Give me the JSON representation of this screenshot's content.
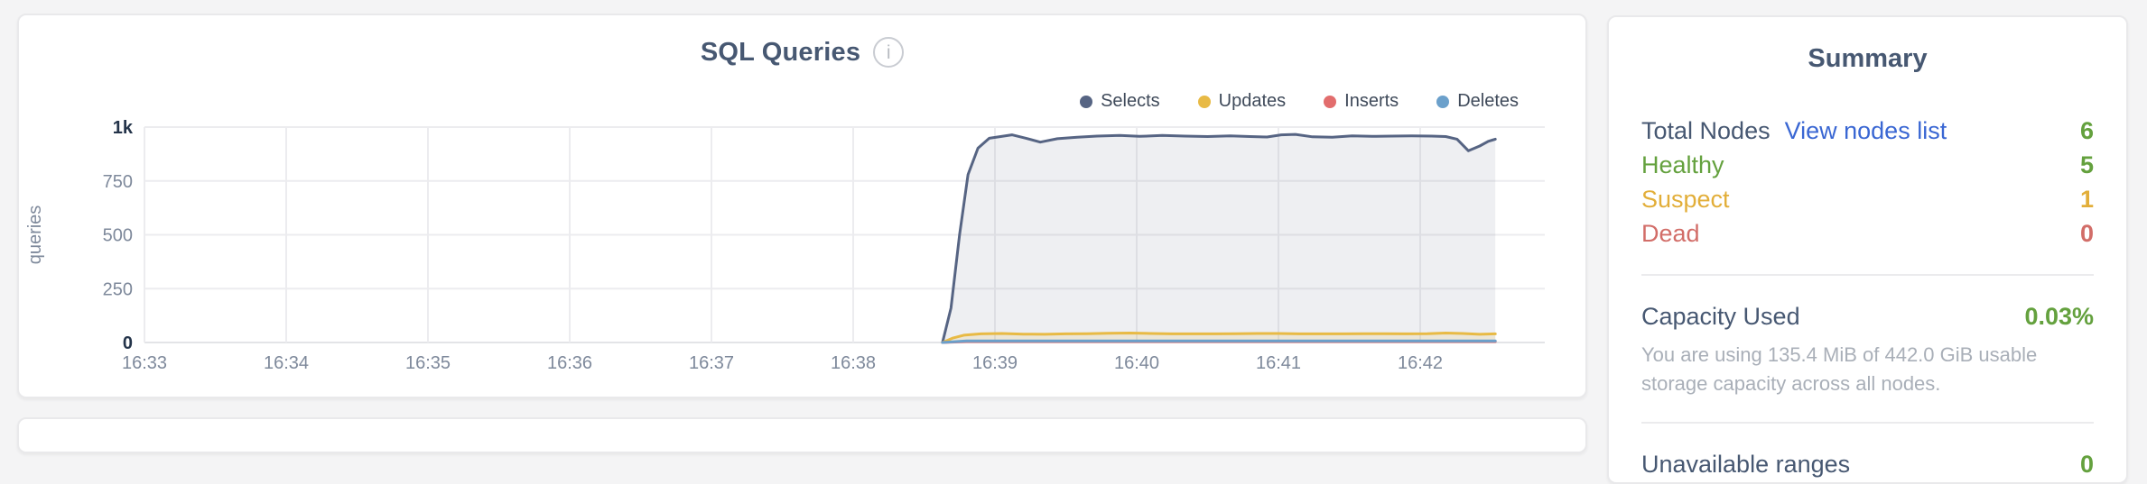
{
  "theme": {
    "page_bg": "#f4f4f5",
    "card_bg": "#ffffff",
    "border": "#e9e9eb",
    "dark": "#475872",
    "green": "#64a13e",
    "amber": "#e2ae39",
    "red": "#d26d68",
    "link": "#3a67d3",
    "caption": "#a9afb8",
    "legend_text": "#3f4a5a",
    "axis": "#7e899b",
    "axis_strong": "#24344a",
    "grid": "#ececef"
  },
  "chart": {
    "title": "SQL Queries",
    "info_icon_glyph": "i"
  },
  "chart_data": {
    "type": "area",
    "title": "SQL Queries",
    "xlabel": "",
    "ylabel": "queries",
    "ylim": [
      0,
      1000
    ],
    "x_range": [
      33,
      42.53
    ],
    "x_unit": "minutes after 16:00",
    "grid": true,
    "legend_position": "top-right",
    "y_ticks": [
      {
        "v": 0,
        "label": "0"
      },
      {
        "v": 250,
        "label": "250"
      },
      {
        "v": 500,
        "label": "500"
      },
      {
        "v": 750,
        "label": "750"
      },
      {
        "v": 1000,
        "label": "1k"
      }
    ],
    "x_ticks": [
      {
        "t": 33,
        "label": "16:33"
      },
      {
        "t": 34,
        "label": "16:34"
      },
      {
        "t": 35,
        "label": "16:35"
      },
      {
        "t": 36,
        "label": "16:36"
      },
      {
        "t": 37,
        "label": "16:37"
      },
      {
        "t": 38,
        "label": "16:38"
      },
      {
        "t": 39,
        "label": "16:39"
      },
      {
        "t": 40,
        "label": "16:40"
      },
      {
        "t": 41,
        "label": "16:41"
      },
      {
        "t": 42,
        "label": "16:42"
      }
    ],
    "series": [
      {
        "name": "Selects",
        "color": "#566483",
        "fill": "rgba(86,100,131,0.10)",
        "points": [
          [
            38.63,
            0
          ],
          [
            38.69,
            160
          ],
          [
            38.75,
            500
          ],
          [
            38.81,
            780
          ],
          [
            38.88,
            902
          ],
          [
            38.96,
            948
          ],
          [
            39.04,
            956
          ],
          [
            39.12,
            964
          ],
          [
            39.22,
            948
          ],
          [
            39.32,
            930
          ],
          [
            39.44,
            946
          ],
          [
            39.58,
            953
          ],
          [
            39.72,
            958
          ],
          [
            39.88,
            961
          ],
          [
            40.02,
            957
          ],
          [
            40.18,
            961
          ],
          [
            40.34,
            958
          ],
          [
            40.5,
            956
          ],
          [
            40.66,
            959
          ],
          [
            40.8,
            956
          ],
          [
            40.92,
            954
          ],
          [
            41.02,
            964
          ],
          [
            41.12,
            966
          ],
          [
            41.24,
            955
          ],
          [
            41.38,
            953
          ],
          [
            41.52,
            959
          ],
          [
            41.66,
            957
          ],
          [
            41.8,
            958
          ],
          [
            41.94,
            959
          ],
          [
            42.08,
            958
          ],
          [
            42.18,
            956
          ],
          [
            42.26,
            944
          ],
          [
            42.34,
            890
          ],
          [
            42.42,
            912
          ],
          [
            42.48,
            934
          ],
          [
            42.53,
            944
          ]
        ]
      },
      {
        "name": "Updates",
        "color": "#e8ba45",
        "fill": "rgba(232,186,69,0.16)",
        "points": [
          [
            38.63,
            0
          ],
          [
            38.7,
            20
          ],
          [
            38.78,
            34
          ],
          [
            38.9,
            40
          ],
          [
            39.05,
            42
          ],
          [
            39.2,
            39
          ],
          [
            39.35,
            38
          ],
          [
            39.5,
            40
          ],
          [
            39.65,
            41
          ],
          [
            39.8,
            43
          ],
          [
            39.95,
            44
          ],
          [
            40.1,
            42
          ],
          [
            40.25,
            40
          ],
          [
            40.4,
            40
          ],
          [
            40.55,
            40
          ],
          [
            40.7,
            41
          ],
          [
            40.85,
            42
          ],
          [
            41.0,
            42
          ],
          [
            41.15,
            40
          ],
          [
            41.3,
            40
          ],
          [
            41.45,
            40
          ],
          [
            41.6,
            41
          ],
          [
            41.75,
            41
          ],
          [
            41.9,
            40
          ],
          [
            42.05,
            41
          ],
          [
            42.18,
            44
          ],
          [
            42.3,
            42
          ],
          [
            42.42,
            38
          ],
          [
            42.53,
            40
          ]
        ]
      },
      {
        "name": "Inserts",
        "color": "#e26d6d",
        "fill": "rgba(226,109,109,0.10)",
        "points": [
          [
            38.63,
            0
          ],
          [
            38.8,
            4
          ],
          [
            39.5,
            4
          ],
          [
            40.5,
            4
          ],
          [
            41.5,
            4
          ],
          [
            42.53,
            4
          ]
        ]
      },
      {
        "name": "Deletes",
        "color": "#6ba0cb",
        "fill": "rgba(107,160,203,0.22)",
        "points": [
          [
            38.63,
            0
          ],
          [
            38.8,
            7
          ],
          [
            39.5,
            7
          ],
          [
            40.5,
            7
          ],
          [
            41.5,
            7
          ],
          [
            42.53,
            7
          ]
        ]
      }
    ]
  },
  "summary": {
    "title": "Summary",
    "total_nodes": {
      "label": "Total Nodes",
      "link": "View nodes list",
      "value": "6"
    },
    "healthy": {
      "label": "Healthy",
      "value": "5"
    },
    "suspect": {
      "label": "Suspect",
      "value": "1"
    },
    "dead": {
      "label": "Dead",
      "value": "0"
    },
    "capacity": {
      "label": "Capacity Used",
      "value": "0.03%",
      "caption": "You are using 135.4 MiB of 442.0 GiB usable storage capacity across all nodes."
    },
    "unavailable_ranges": {
      "label": "Unavailable ranges",
      "value": "0"
    }
  }
}
